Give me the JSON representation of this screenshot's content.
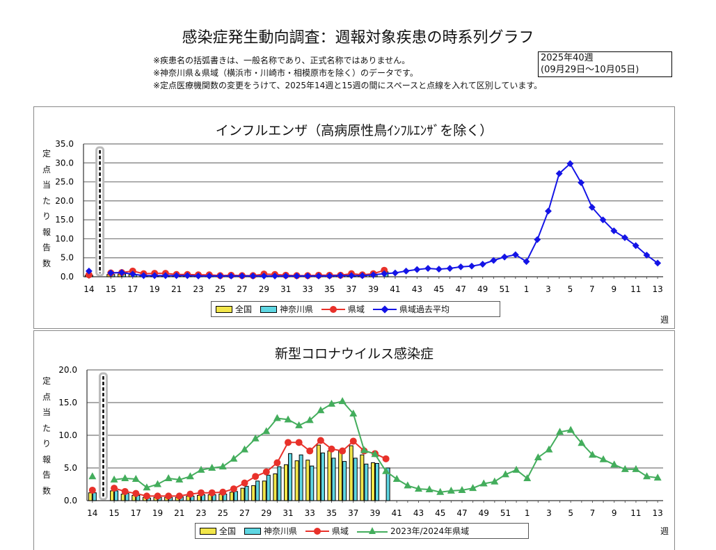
{
  "title": "感染症発生動向調査：週報対象疾患の時系列グラフ",
  "notes": [
    "※疾患名の括弧書きは、一般名称であり、正式名称ではありません。",
    "※神奈川県＆県域（横浜市・川崎市・相模原市を除く）のデータです。",
    "※定点医療機関数の変更をうけて、2025年14週と15週の間にスペースと点線を入れて区別しています。"
  ],
  "period": {
    "week": "2025年40週",
    "range": "(09月29日～10月05日)"
  },
  "colors": {
    "national": "#f2e64a",
    "kanagawa": "#5ed6e2",
    "region": "#e8312a",
    "past_avg": "#1414e6",
    "prev_season": "#43ad5c"
  },
  "week_unit": "週",
  "y_label_chars": [
    "定",
    "点",
    "当",
    "た",
    "り",
    "報",
    "告",
    "数"
  ],
  "chart_data": [
    {
      "type": "bar+line",
      "title": "インフルエンザ（高病原性鳥ｲﾝﾌﾙｴﾝｻﾞを除く）",
      "ylim": [
        0,
        35
      ],
      "y_ticks": [
        "0.0",
        "5.0",
        "10.0",
        "15.0",
        "20.0",
        "25.0",
        "30.0",
        "35.0"
      ],
      "weeks": [
        "14",
        "15",
        "16",
        "17",
        "18",
        "19",
        "20",
        "21",
        "22",
        "23",
        "24",
        "25",
        "26",
        "27",
        "28",
        "29",
        "30",
        "31",
        "32",
        "33",
        "34",
        "35",
        "36",
        "37",
        "38",
        "39",
        "40",
        "41",
        "42",
        "43",
        "44",
        "45",
        "46",
        "47",
        "48",
        "49",
        "50",
        "51",
        "52",
        "1",
        "2",
        "3",
        "4",
        "5",
        "6",
        "7",
        "8",
        "9",
        "10",
        "11",
        "12",
        "13"
      ],
      "x_tick_labels": [
        "14",
        "15",
        "17",
        "19",
        "21",
        "23",
        "25",
        "27",
        "29",
        "31",
        "33",
        "35",
        "37",
        "39",
        "41",
        "43",
        "45",
        "47",
        "49",
        "51",
        "1",
        "3",
        "5",
        "7",
        "9",
        "11",
        "13"
      ],
      "legend": [
        "全国",
        "神奈川県",
        "県域",
        "県域過去平均"
      ],
      "series": [
        {
          "name": "全国",
          "kind": "bar",
          "values": [
            0.4,
            0.6,
            0.7,
            0.6,
            0.3,
            0.2,
            0.2,
            0.2,
            0.2,
            0.2,
            0.2,
            0.2,
            0.2,
            0.2,
            0.2,
            0.2,
            0.2,
            0.2,
            0.2,
            0.2,
            0.2,
            0.2,
            0.3,
            0.3,
            0.4,
            0.6
          ]
        },
        {
          "name": "神奈川県",
          "kind": "bar",
          "values": [
            0.4,
            0.6,
            0.7,
            0.5,
            0.3,
            0.2,
            0.2,
            0.2,
            0.2,
            0.2,
            0.2,
            0.2,
            0.2,
            0.2,
            0.2,
            0.2,
            0.2,
            0.2,
            0.2,
            0.2,
            0.2,
            0.2,
            0.3,
            0.3,
            0.4,
            0.6,
            1.3
          ]
        },
        {
          "name": "県域",
          "kind": "line-circle",
          "values": [
            0.5,
            1.0,
            1.1,
            1.5,
            0.8,
            0.9,
            0.9,
            0.6,
            0.6,
            0.5,
            0.5,
            0.3,
            0.4,
            0.3,
            0.3,
            0.7,
            0.6,
            0.4,
            0.3,
            0.3,
            0.4,
            0.4,
            0.4,
            0.8,
            0.5,
            0.8,
            1.7
          ]
        },
        {
          "name": "県域過去平均",
          "kind": "line-diamond",
          "values": [
            1.5,
            1.0,
            1.1,
            0.7,
            0.3,
            0.3,
            0.3,
            0.3,
            0.3,
            0.2,
            0.2,
            0.2,
            0.2,
            0.2,
            0.2,
            0.2,
            0.2,
            0.2,
            0.2,
            0.2,
            0.2,
            0.2,
            0.3,
            0.3,
            0.3,
            0.5,
            0.8,
            1.0,
            1.5,
            1.9,
            2.2,
            2.0,
            2.2,
            2.6,
            2.8,
            3.3,
            4.3,
            5.2,
            5.8,
            4.0,
            9.8,
            17.3,
            27.2,
            29.8,
            24.8,
            18.3,
            15.0,
            12.1,
            10.3,
            8.2,
            5.7,
            3.6
          ]
        }
      ]
    },
    {
      "type": "bar+line",
      "title": "新型コロナウイルス感染症",
      "ylim": [
        0,
        20
      ],
      "y_ticks": [
        "0.0",
        "5.0",
        "10.0",
        "15.0",
        "20.0"
      ],
      "weeks": [
        "14",
        "15",
        "16",
        "17",
        "18",
        "19",
        "20",
        "21",
        "22",
        "23",
        "24",
        "25",
        "26",
        "27",
        "28",
        "29",
        "30",
        "31",
        "32",
        "33",
        "34",
        "35",
        "36",
        "37",
        "38",
        "39",
        "40",
        "41",
        "42",
        "43",
        "44",
        "45",
        "46",
        "47",
        "48",
        "49",
        "50",
        "51",
        "52",
        "1",
        "2",
        "3",
        "4",
        "5",
        "6",
        "7",
        "8",
        "9",
        "10",
        "11",
        "12",
        "13"
      ],
      "x_tick_labels": [
        "14",
        "15",
        "17",
        "19",
        "21",
        "23",
        "25",
        "27",
        "29",
        "31",
        "33",
        "35",
        "37",
        "39",
        "41",
        "43",
        "45",
        "47",
        "49",
        "51",
        "1",
        "3",
        "5",
        "7",
        "9",
        "11",
        "13"
      ],
      "legend": [
        "全国",
        "神奈川県",
        "県域",
        "2023年/2024年県域"
      ],
      "series": [
        {
          "name": "全国",
          "kind": "bar",
          "values": [
            1.2,
            1.5,
            1.0,
            0.8,
            0.5,
            0.5,
            0.5,
            0.5,
            0.7,
            0.8,
            0.9,
            1.0,
            1.3,
            1.9,
            2.3,
            3.0,
            4.1,
            5.5,
            6.1,
            6.2,
            8.5,
            7.6,
            7.7,
            8.4,
            7.0,
            5.8
          ]
        },
        {
          "name": "神奈川県",
          "kind": "bar",
          "values": [
            1.2,
            1.5,
            1.1,
            0.8,
            0.4,
            0.5,
            0.5,
            0.6,
            0.7,
            0.9,
            0.9,
            1.0,
            1.4,
            2.2,
            3.0,
            3.9,
            5.2,
            7.2,
            7.0,
            5.3,
            7.3,
            6.5,
            6.0,
            6.5,
            5.6,
            5.7,
            5.0
          ]
        },
        {
          "name": "県域",
          "kind": "line-circle",
          "values": [
            1.6,
            1.9,
            1.4,
            1.1,
            0.7,
            0.7,
            0.7,
            0.7,
            1.0,
            1.2,
            1.2,
            1.3,
            1.8,
            2.7,
            3.7,
            4.4,
            5.8,
            8.9,
            8.9,
            7.6,
            9.2,
            7.9,
            7.6,
            9.1,
            7.6,
            7.2,
            6.4
          ]
        },
        {
          "name": "2023年/2024年県域",
          "kind": "line-triangle",
          "values": [
            3.7,
            3.2,
            3.4,
            3.3,
            2.0,
            2.5,
            3.4,
            3.2,
            3.7,
            4.7,
            5.0,
            5.2,
            6.4,
            7.8,
            9.5,
            10.6,
            12.6,
            12.4,
            11.5,
            12.3,
            13.8,
            14.8,
            15.2,
            13.3,
            7.7,
            7.1,
            4.5,
            3.3,
            2.3,
            1.8,
            1.7,
            1.3,
            1.5,
            1.6,
            1.9,
            2.6,
            2.9,
            4.0,
            4.7,
            3.4,
            6.6,
            7.8,
            10.5,
            10.8,
            8.8,
            7.0,
            6.3,
            5.5,
            4.8,
            4.8,
            3.7,
            3.5
          ]
        }
      ]
    }
  ]
}
